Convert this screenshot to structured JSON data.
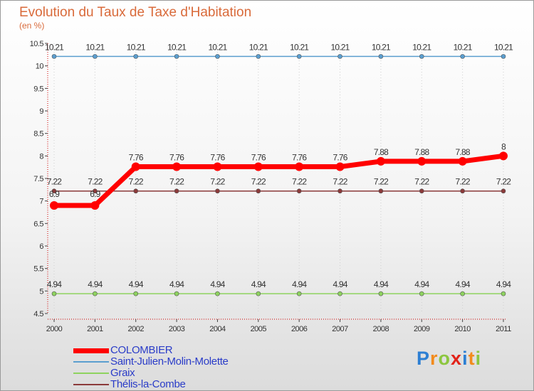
{
  "title": "Evolution du Taux de Taxe d'Habitation",
  "subtitle": "(en %)",
  "chart_data": {
    "type": "line",
    "title": "Evolution du Taux de Taxe d'Habitation",
    "ylabel": "(en %)",
    "xlabel": "",
    "categories": [
      "2000",
      "2001",
      "2002",
      "2003",
      "2004",
      "2005",
      "2006",
      "2007",
      "2008",
      "2009",
      "2010",
      "2011"
    ],
    "ylim": [
      4.5,
      10.5
    ],
    "yticks": [
      "4.5",
      "5",
      "5.5",
      "6",
      "6.5",
      "7",
      "7.5",
      "8",
      "8.5",
      "9",
      "9.5",
      "10",
      "10.5"
    ],
    "series": [
      {
        "name": "COLOMBIER",
        "color": "#ff0000",
        "values": [
          6.9,
          6.9,
          7.76,
          7.76,
          7.76,
          7.76,
          7.76,
          7.76,
          7.88,
          7.88,
          7.88,
          8
        ],
        "labels": [
          "6.9",
          "6.9",
          "7.76",
          "7.76",
          "7.76",
          "7.76",
          "7.76",
          "7.76",
          "7.88",
          "7.88",
          "7.88",
          "8"
        ]
      },
      {
        "name": "Saint-Julien-Molin-Molette",
        "color": "#5b9ecf",
        "values": [
          10.21,
          10.21,
          10.21,
          10.21,
          10.21,
          10.21,
          10.21,
          10.21,
          10.21,
          10.21,
          10.21,
          10.21
        ],
        "labels": [
          "10.21",
          "10.21",
          "10.21",
          "10.21",
          "10.21",
          "10.21",
          "10.21",
          "10.21",
          "10.21",
          "10.21",
          "10.21",
          "10.21"
        ]
      },
      {
        "name": "Graix",
        "color": "#8ed35f",
        "values": [
          4.94,
          4.94,
          4.94,
          4.94,
          4.94,
          4.94,
          4.94,
          4.94,
          4.94,
          4.94,
          4.94,
          4.94
        ],
        "labels": [
          "4.94",
          "4.94",
          "4.94",
          "4.94",
          "4.94",
          "4.94",
          "4.94",
          "4.94",
          "4.94",
          "4.94",
          "4.94",
          "4.94"
        ]
      },
      {
        "name": "Thélis-la-Combe",
        "color": "#8b3a3a",
        "values": [
          7.22,
          7.22,
          7.22,
          7.22,
          7.22,
          7.22,
          7.22,
          7.22,
          7.22,
          7.22,
          7.22,
          7.22
        ],
        "labels": [
          "7.22",
          "7.22",
          "7.22",
          "7.22",
          "7.22",
          "7.22",
          "7.22",
          "7.22",
          "7.22",
          "7.22",
          "7.22",
          "7.22"
        ]
      }
    ]
  },
  "legend": {
    "items": [
      {
        "label": "COLOMBIER",
        "color": "#ff0000"
      },
      {
        "label": "Saint-Julien-Molin-Molette",
        "color": "#5b9ecf"
      },
      {
        "label": "Graix",
        "color": "#8ed35f"
      },
      {
        "label": "Thélis-la-Combe",
        "color": "#8b3a3a"
      }
    ]
  },
  "logo": {
    "letters": [
      "P",
      "r",
      "o",
      "x",
      "i",
      "t",
      "i"
    ],
    "colors": [
      "#2d7fd3",
      "#f28b1c",
      "#8cc63f",
      "#e2231a",
      "#2d7fd3",
      "#f28b1c",
      "#8cc63f"
    ]
  }
}
